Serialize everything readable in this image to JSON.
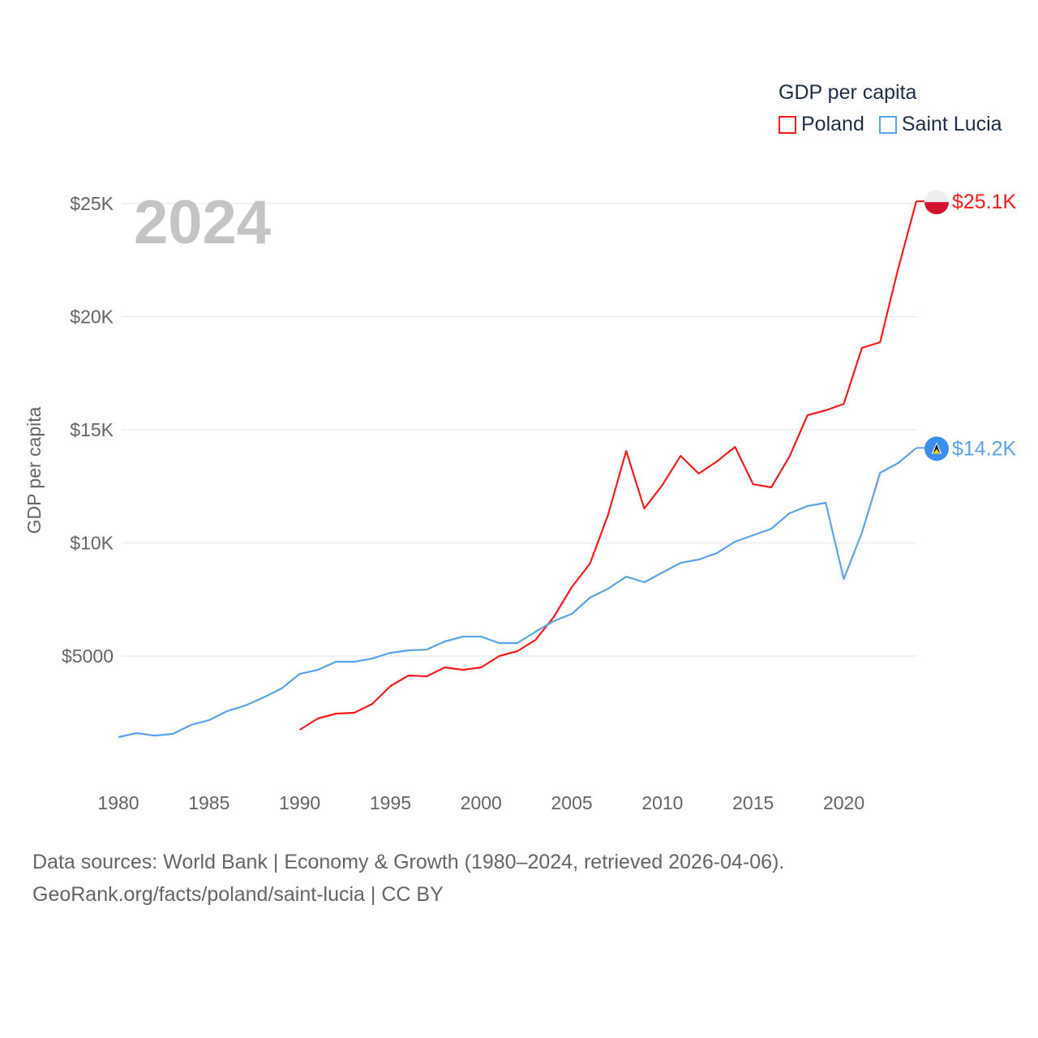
{
  "legend": {
    "title": "GDP per capita",
    "items": [
      {
        "label": "Poland",
        "color": "#ff1a1a"
      },
      {
        "label": "Saint Lucia",
        "color": "#5ba4ec"
      }
    ]
  },
  "year_label": "2024",
  "footer": {
    "line1": "Data sources: World Bank | Economy & Growth (1980–2024, retrieved 2026-04-06).",
    "line2": "GeoRank.org/facts/poland/saint-lucia | CC BY"
  },
  "chart_data": {
    "type": "line",
    "title": "GDP per capita",
    "xlabel": "",
    "ylabel": "GDP per capita",
    "xlim": [
      1980,
      2024
    ],
    "ylim": [
      0,
      26000
    ],
    "x_ticks": [
      1980,
      1985,
      1990,
      1995,
      2000,
      2005,
      2010,
      2015,
      2020
    ],
    "x_tick_labels": [
      "1980",
      "1985",
      "1990",
      "1995",
      "2000",
      "2005",
      "2010",
      "2015",
      "2020"
    ],
    "y_ticks": [
      5000,
      10000,
      15000,
      20000,
      25000
    ],
    "y_tick_labels": [
      "$5000",
      "$10K",
      "$15K",
      "$20K",
      "$25K"
    ],
    "grid": "horizontal",
    "legend_position": "top-right",
    "series": [
      {
        "name": "Poland",
        "color": "#ff1a1a",
        "end_label": "$25.1K",
        "flag": "poland-flag",
        "x": [
          1990,
          1991,
          1992,
          1993,
          1994,
          1995,
          1996,
          1997,
          1998,
          1999,
          2000,
          2001,
          2002,
          2003,
          2004,
          2005,
          2006,
          2007,
          2008,
          2009,
          2010,
          2011,
          2012,
          2013,
          2014,
          2015,
          2016,
          2017,
          2018,
          2019,
          2020,
          2021,
          2022,
          2023,
          2024
        ],
        "values": [
          1740,
          2240,
          2455,
          2490,
          2885,
          3675,
          4140,
          4105,
          4500,
          4390,
          4500,
          5000,
          5215,
          5715,
          6720,
          8045,
          9085,
          11235,
          14065,
          11520,
          12560,
          13850,
          13065,
          13600,
          14245,
          12595,
          12455,
          13815,
          15645,
          15860,
          16145,
          18620,
          18870,
          22130,
          25100
        ]
      },
      {
        "name": "Saint Lucia",
        "color": "#5ba4ec",
        "end_label": "$14.2K",
        "flag": "saint-lucia-flag",
        "x": [
          1980,
          1981,
          1982,
          1983,
          1984,
          1985,
          1986,
          1987,
          1988,
          1989,
          1990,
          1991,
          1992,
          1993,
          1994,
          1995,
          1996,
          1997,
          1998,
          1999,
          2000,
          2001,
          2002,
          2003,
          2004,
          2005,
          2006,
          2007,
          2008,
          2009,
          2010,
          2011,
          2012,
          2013,
          2014,
          2015,
          2016,
          2017,
          2018,
          2019,
          2020,
          2021,
          2022,
          2023,
          2024
        ],
        "values": [
          1415,
          1595,
          1485,
          1560,
          1955,
          2170,
          2565,
          2815,
          3170,
          3565,
          4210,
          4390,
          4750,
          4750,
          4890,
          5145,
          5250,
          5285,
          5645,
          5860,
          5860,
          5575,
          5575,
          6075,
          6540,
          6865,
          7580,
          7975,
          8510,
          8260,
          8690,
          9120,
          9265,
          9550,
          10055,
          10340,
          10625,
          11310,
          11630,
          11775,
          8405,
          10450,
          13100,
          13530,
          14200
        ]
      }
    ]
  }
}
